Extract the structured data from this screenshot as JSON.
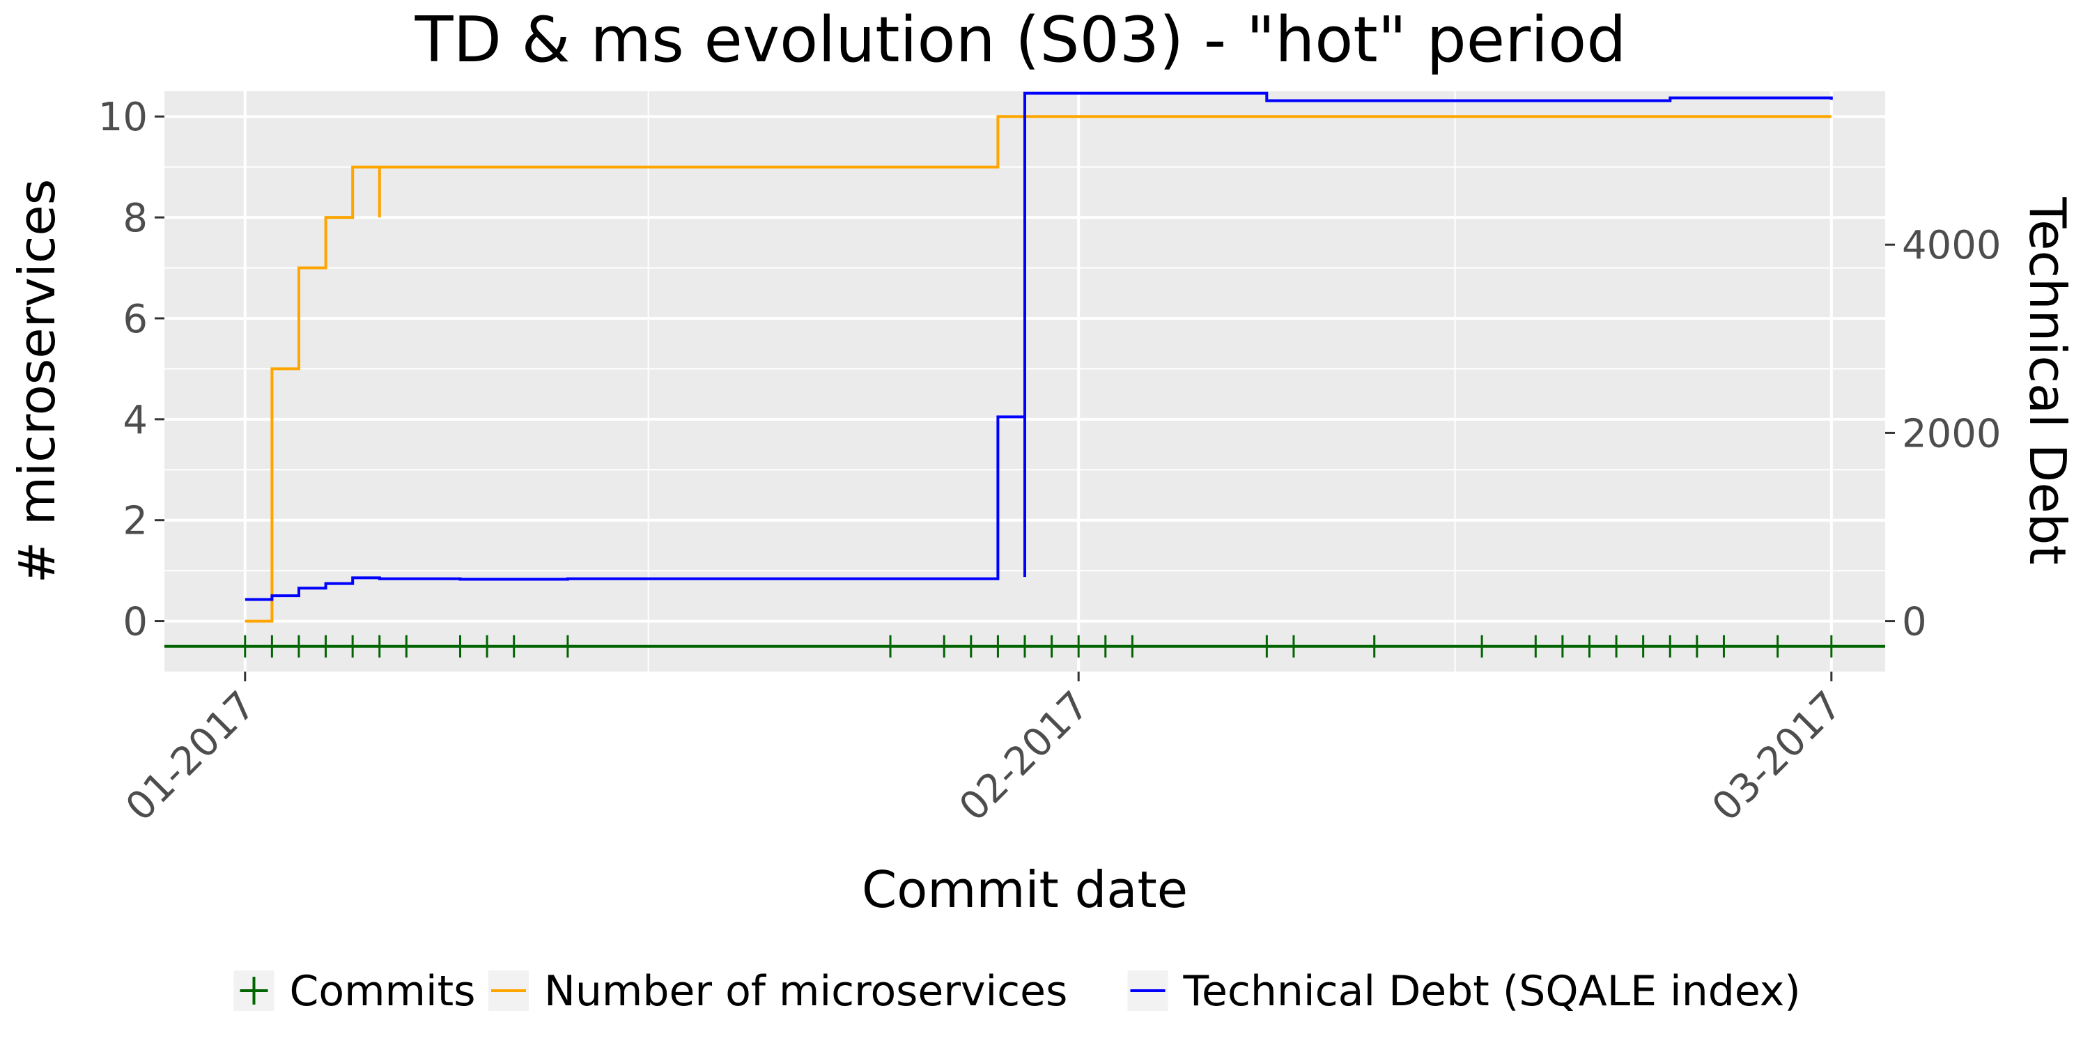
{
  "chart_data": {
    "type": "line",
    "title": "TD & ms evolution (S03) - \"hot\" period",
    "xlabel": "Commit date",
    "ylabel_left": "# microservices",
    "ylabel_right": "Technical Debt",
    "x_range": [
      "2016-12-29",
      "2017-03-03"
    ],
    "ylim_left": [
      -1,
      10.5
    ],
    "ylim_right": [
      -536,
      5630
    ],
    "x_ticks": [
      {
        "date": "2017-01-01",
        "label": "01-2017"
      },
      {
        "date": "2017-02-01",
        "label": "02-2017"
      },
      {
        "date": "2017-03-01",
        "label": "03-2017"
      }
    ],
    "x_minor_ticks": [
      "2017-01-16",
      "2017-02-15"
    ],
    "y_left_ticks": [
      0,
      2,
      4,
      6,
      8,
      10
    ],
    "y_right_ticks": [
      0,
      2000,
      4000
    ],
    "background": "#ebebeb",
    "grid": true,
    "legend_position": "bottom",
    "series": [
      {
        "name": "Number of microservices",
        "axis": "left",
        "color": "#ffa500",
        "step": true,
        "points": [
          [
            "2017-01-01",
            0
          ],
          [
            "2017-01-02",
            5
          ],
          [
            "2017-01-03",
            6
          ],
          [
            "2017-01-03",
            7
          ],
          [
            "2017-01-04",
            7
          ],
          [
            "2017-01-04",
            8
          ],
          [
            "2017-01-05",
            8
          ],
          [
            "2017-01-05",
            9
          ],
          [
            "2017-01-06",
            9
          ],
          [
            "2017-01-06",
            8
          ],
          [
            "2017-01-06",
            9
          ],
          [
            "2017-01-29",
            9
          ],
          [
            "2017-01-29",
            10
          ],
          [
            "2017-03-01",
            10
          ]
        ]
      },
      {
        "name": "Technical Debt (SQALE index)",
        "axis": "right",
        "color": "#0000ff",
        "step": true,
        "points": [
          [
            "2017-01-01",
            230
          ],
          [
            "2017-01-02",
            270
          ],
          [
            "2017-01-03",
            350
          ],
          [
            "2017-01-04",
            400
          ],
          [
            "2017-01-05",
            460
          ],
          [
            "2017-01-06",
            450
          ],
          [
            "2017-01-09",
            445
          ],
          [
            "2017-01-13",
            450
          ],
          [
            "2017-01-29",
            450
          ],
          [
            "2017-01-29",
            2170
          ],
          [
            "2017-01-30",
            2170
          ],
          [
            "2017-01-30",
            470
          ],
          [
            "2017-01-30",
            5610
          ],
          [
            "2017-02-08",
            5610
          ],
          [
            "2017-02-08",
            5530
          ],
          [
            "2017-02-22",
            5530
          ],
          [
            "2017-02-23",
            5560
          ],
          [
            "2017-02-28",
            5560
          ],
          [
            "2017-03-01",
            5540
          ]
        ]
      },
      {
        "name": "Commits",
        "axis": "baseline",
        "color": "#006400",
        "marker": "+",
        "dates": [
          "2017-01-01",
          "2017-01-02",
          "2017-01-03",
          "2017-01-04",
          "2017-01-05",
          "2017-01-06",
          "2017-01-07",
          "2017-01-09",
          "2017-01-10",
          "2017-01-11",
          "2017-01-13",
          "2017-01-25",
          "2017-01-27",
          "2017-01-28",
          "2017-01-29",
          "2017-01-30",
          "2017-01-31",
          "2017-02-01",
          "2017-02-02",
          "2017-02-03",
          "2017-02-08",
          "2017-02-09",
          "2017-02-12",
          "2017-02-16",
          "2017-02-18",
          "2017-02-19",
          "2017-02-20",
          "2017-02-21",
          "2017-02-22",
          "2017-02-23",
          "2017-02-24",
          "2017-02-25",
          "2017-02-27",
          "2017-03-01"
        ]
      }
    ],
    "legend": [
      {
        "label": "Commits",
        "symbol": "plus",
        "color": "#006400"
      },
      {
        "label": "Number of microservices",
        "symbol": "line",
        "color": "#ffa500"
      },
      {
        "label": "Technical Debt (SQALE index)",
        "symbol": "line",
        "color": "#0000ff"
      }
    ]
  }
}
